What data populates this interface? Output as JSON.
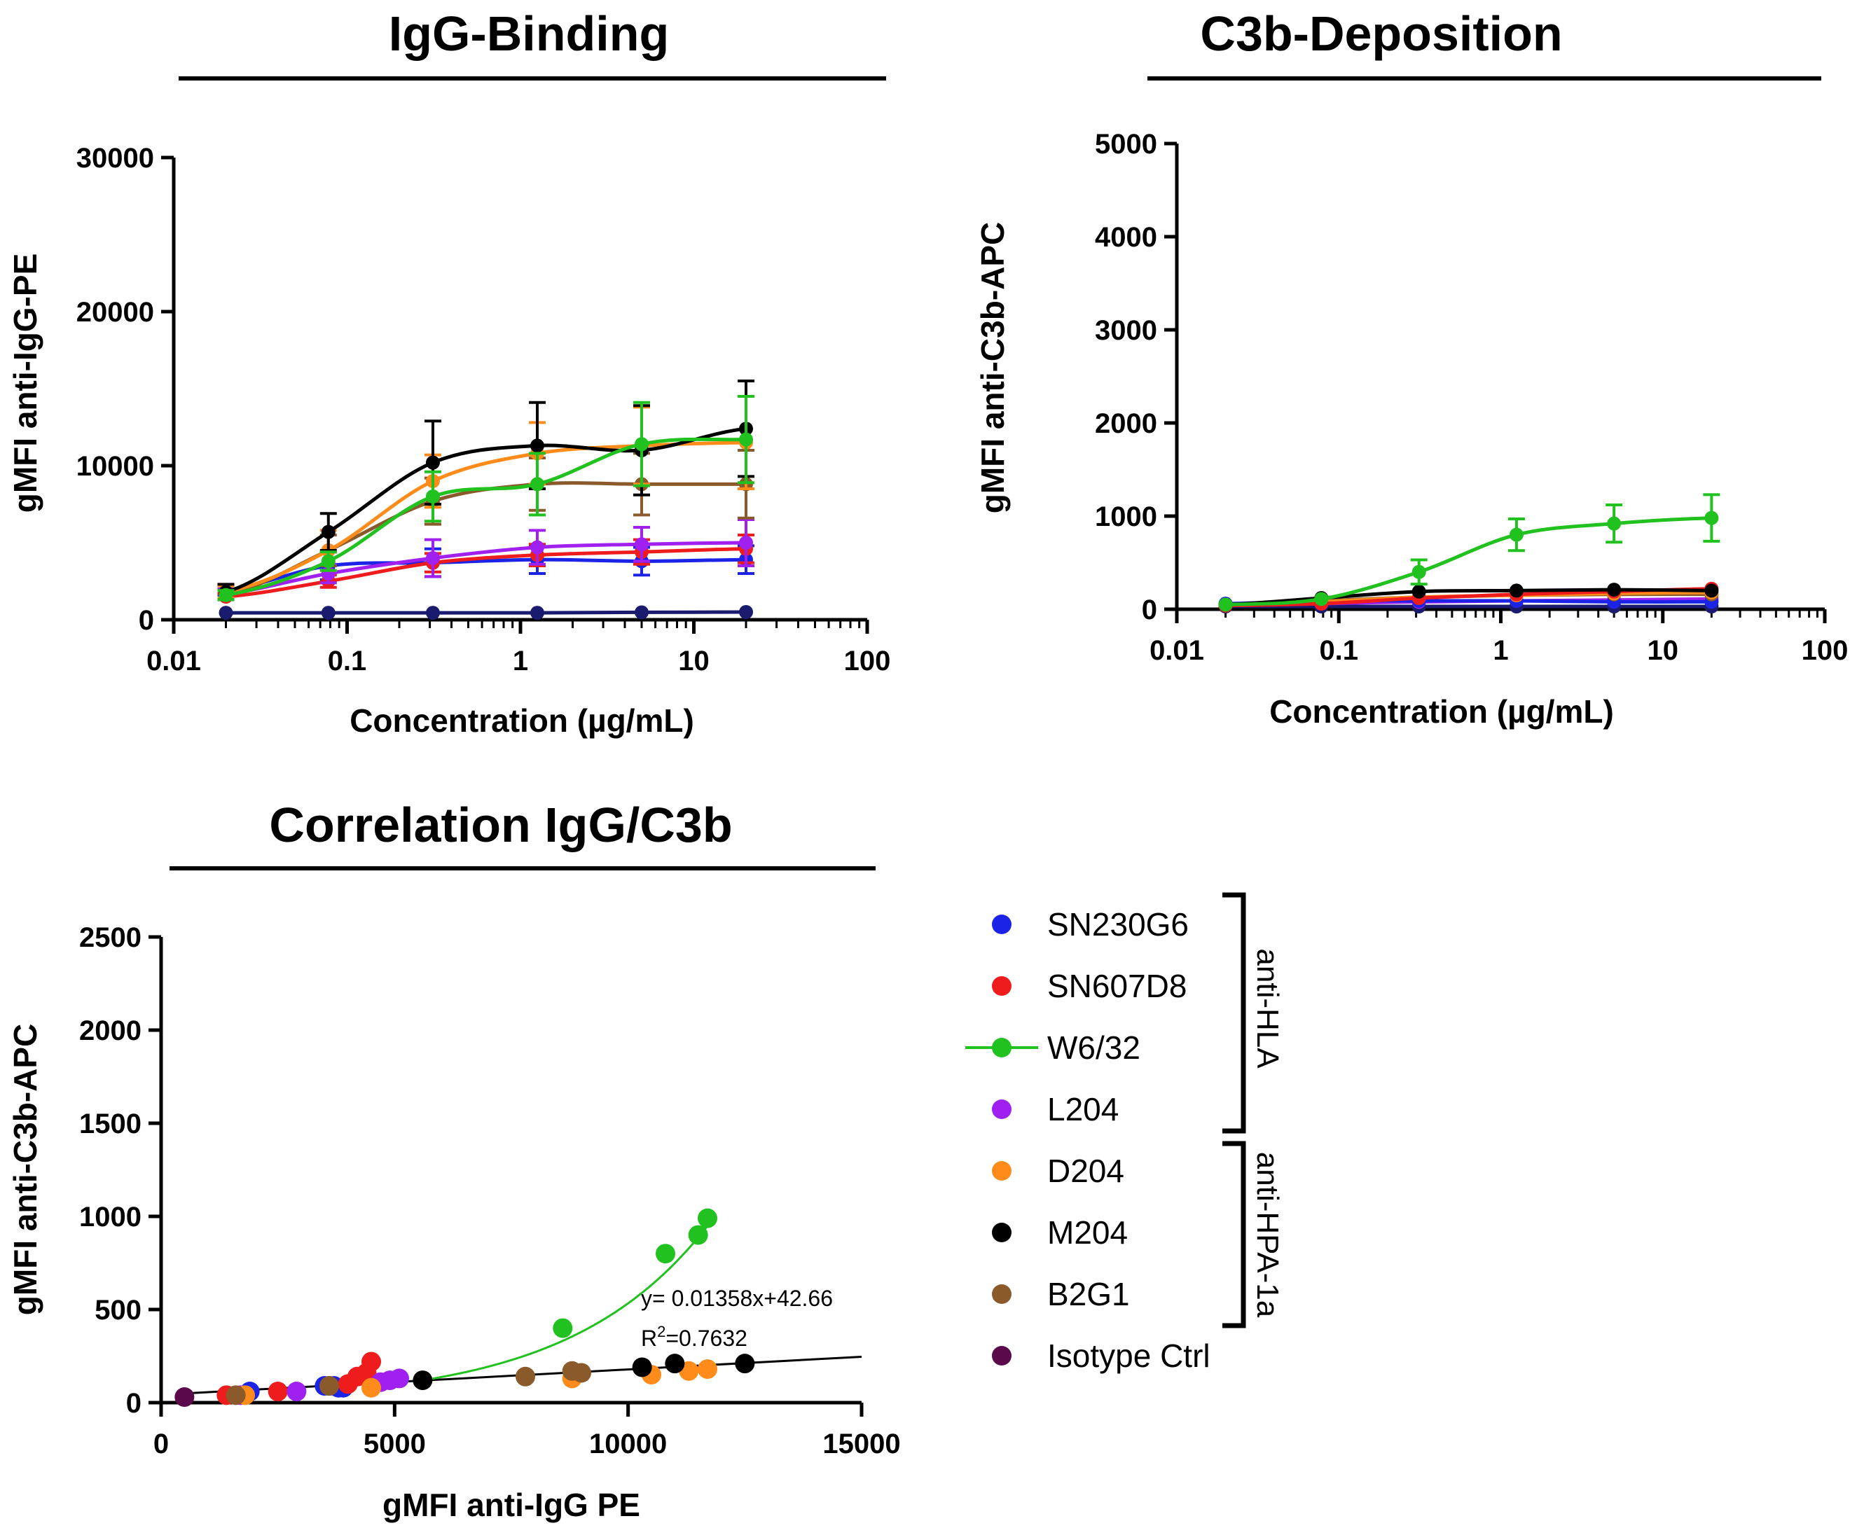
{
  "chart_data": [
    {
      "id": "igg",
      "type": "line",
      "title": "IgG-Binding",
      "xlabel": "Concentration (µg/mL)",
      "ylabel": "gMFI anti-IgG-PE",
      "xscale": "log",
      "xlim": [
        0.01,
        100
      ],
      "ylim": [
        0,
        30000
      ],
      "xticks": [
        0.01,
        0.1,
        1,
        10,
        100
      ],
      "xtick_labels": [
        "0.01",
        "0.1",
        "1",
        "10",
        "100"
      ],
      "yticks": [
        0,
        10000,
        20000,
        30000
      ],
      "ytick_labels": [
        "0",
        "10000",
        "20000",
        "30000"
      ],
      "x": [
        0.02,
        0.078,
        0.3125,
        1.25,
        5,
        20
      ],
      "series": [
        {
          "name": "Isotype Ctrl",
          "color": "#1a1a6e",
          "values": [
            450,
            450,
            450,
            450,
            480,
            500
          ],
          "err": [
            0,
            0,
            0,
            0,
            0,
            0
          ]
        },
        {
          "name": "SN230G6",
          "color": "#1b24e6",
          "values": [
            1900,
            3500,
            3700,
            3900,
            3800,
            3900
          ],
          "err": [
            300,
            900,
            900,
            900,
            900,
            900
          ]
        },
        {
          "name": "SN607D8",
          "color": "#ee1c1c",
          "values": [
            1500,
            2500,
            3700,
            4200,
            4400,
            4600
          ],
          "err": [
            200,
            400,
            600,
            700,
            800,
            900
          ]
        },
        {
          "name": "L204",
          "color": "#a020f0",
          "values": [
            1700,
            3000,
            4000,
            4700,
            4900,
            5000
          ],
          "err": [
            300,
            600,
            1200,
            1100,
            1100,
            1500
          ]
        },
        {
          "name": "B2G1",
          "color": "#8b5a2b",
          "values": [
            1600,
            4500,
            7700,
            8800,
            8800,
            8800
          ],
          "err": [
            300,
            1000,
            1500,
            1700,
            2000,
            2200
          ]
        },
        {
          "name": "D204",
          "color": "#ff8c1a",
          "values": [
            1800,
            4500,
            9000,
            10800,
            11300,
            11500
          ],
          "err": [
            400,
            1300,
            1700,
            2000,
            2500,
            3000
          ]
        },
        {
          "name": "M204",
          "color": "#000000",
          "values": [
            1800,
            5700,
            10200,
            11300,
            11000,
            12400
          ],
          "err": [
            500,
            1200,
            2700,
            2800,
            2900,
            3100
          ]
        },
        {
          "name": "W6/32",
          "color": "#21c21f",
          "values": [
            1600,
            3800,
            8000,
            8800,
            11400,
            11700
          ],
          "err": [
            300,
            600,
            1600,
            2000,
            2700,
            2800
          ]
        }
      ]
    },
    {
      "id": "c3b",
      "type": "line",
      "title": "C3b-Deposition",
      "xlabel": "Concentration (µg/mL)",
      "ylabel": "gMFI anti-C3b-APC",
      "xscale": "log",
      "xlim": [
        0.01,
        100
      ],
      "ylim": [
        0,
        5000
      ],
      "xticks": [
        0.01,
        0.1,
        1,
        10,
        100
      ],
      "xtick_labels": [
        "0.01",
        "0.1",
        "1",
        "10",
        "100"
      ],
      "yticks": [
        0,
        1000,
        2000,
        3000,
        4000,
        5000
      ],
      "ytick_labels": [
        "0",
        "1000",
        "2000",
        "3000",
        "4000",
        "5000"
      ],
      "x": [
        0.02,
        0.078,
        0.3125,
        1.25,
        5,
        20
      ],
      "series": [
        {
          "name": "Isotype Ctrl",
          "color": "#1a1a6e",
          "values": [
            30,
            30,
            30,
            30,
            30,
            30
          ],
          "err": [
            0,
            0,
            0,
            0,
            0,
            0
          ]
        },
        {
          "name": "L204",
          "color": "#a020f0",
          "values": [
            40,
            60,
            80,
            90,
            100,
            110
          ],
          "err": [
            0,
            0,
            0,
            0,
            0,
            0
          ]
        },
        {
          "name": "SN230G6",
          "color": "#1b24e6",
          "values": [
            60,
            90,
            90,
            90,
            80,
            80
          ],
          "err": [
            0,
            0,
            0,
            0,
            0,
            0
          ]
        },
        {
          "name": "B2G1",
          "color": "#8b5a2b",
          "values": [
            40,
            90,
            130,
            150,
            160,
            160
          ],
          "err": [
            0,
            0,
            0,
            0,
            0,
            0
          ]
        },
        {
          "name": "D204",
          "color": "#ff8c1a",
          "values": [
            40,
            80,
            130,
            150,
            170,
            180
          ],
          "err": [
            0,
            0,
            0,
            0,
            0,
            0
          ]
        },
        {
          "name": "SN607D8",
          "color": "#ee1c1c",
          "values": [
            40,
            60,
            120,
            160,
            190,
            220
          ],
          "err": [
            0,
            0,
            0,
            0,
            0,
            0
          ]
        },
        {
          "name": "M204",
          "color": "#000000",
          "values": [
            50,
            120,
            190,
            200,
            210,
            200
          ],
          "err": [
            0,
            0,
            0,
            0,
            0,
            0
          ]
        },
        {
          "name": "W6/32",
          "color": "#21c21f",
          "values": [
            50,
            110,
            400,
            800,
            920,
            980
          ],
          "err": [
            0,
            0,
            130,
            170,
            200,
            250
          ]
        }
      ]
    },
    {
      "id": "corr",
      "type": "scatter",
      "title": "Correlation IgG/C3b",
      "xlabel": "gMFI anti-IgG PE",
      "ylabel": "gMFI anti-C3b-APC",
      "xlim": [
        0,
        15000
      ],
      "ylim": [
        0,
        2500
      ],
      "xticks": [
        0,
        5000,
        10000,
        15000
      ],
      "xtick_labels": [
        "0",
        "5000",
        "10000",
        "15000"
      ],
      "yticks": [
        0,
        500,
        1000,
        1500,
        2000,
        2500
      ],
      "ytick_labels": [
        "0",
        "500",
        "1000",
        "1500",
        "2000",
        "2500"
      ],
      "series": [
        {
          "name": "SN230G6",
          "color": "#1b24e6",
          "points": [
            [
              1900,
              60
            ],
            [
              3500,
              90
            ],
            [
              3600,
              90
            ],
            [
              3700,
              90
            ],
            [
              3800,
              80
            ],
            [
              3900,
              80
            ]
          ]
        },
        {
          "name": "SN607D8",
          "color": "#ee1c1c",
          "points": [
            [
              1400,
              40
            ],
            [
              2500,
              60
            ],
            [
              4000,
              100
            ],
            [
              4200,
              140
            ],
            [
              4400,
              160
            ],
            [
              4500,
              220
            ]
          ]
        },
        {
          "name": "W6/32",
          "color": "#21c21f",
          "points": [
            [
              8600,
              400
            ],
            [
              10800,
              800
            ],
            [
              11500,
              900
            ],
            [
              11700,
              990
            ]
          ]
        },
        {
          "name": "L204",
          "color": "#a020f0",
          "points": [
            [
              1700,
              40
            ],
            [
              2900,
              60
            ],
            [
              4700,
              110
            ],
            [
              4900,
              120
            ],
            [
              5100,
              130
            ]
          ]
        },
        {
          "name": "D204",
          "color": "#ff8c1a",
          "points": [
            [
              1800,
              40
            ],
            [
              4500,
              80
            ],
            [
              8800,
              130
            ],
            [
              10500,
              150
            ],
            [
              11300,
              170
            ],
            [
              11700,
              180
            ]
          ]
        },
        {
          "name": "M204",
          "color": "#000000",
          "points": [
            [
              5600,
              120
            ],
            [
              10300,
              190
            ],
            [
              11000,
              210
            ],
            [
              12500,
              210
            ]
          ]
        },
        {
          "name": "B2G1",
          "color": "#8b5a2b",
          "points": [
            [
              1600,
              40
            ],
            [
              3600,
              90
            ],
            [
              7800,
              140
            ],
            [
              8800,
              170
            ],
            [
              9000,
              160
            ]
          ]
        },
        {
          "name": "Isotype Ctrl",
          "color": "#5a0a4a",
          "points": [
            [
              500,
              30
            ]
          ]
        }
      ],
      "fit_line": {
        "slope": 0.01358,
        "intercept": 42.66,
        "color": "#000000"
      },
      "equation_text": "y= 0.01358x+42.66",
      "r2_prefix": "R",
      "r2_sup": "2",
      "r2_value": "=0.7632"
    }
  ],
  "legend": {
    "items": [
      {
        "name": "SN230G6",
        "color": "#1b24e6",
        "line": false
      },
      {
        "name": "SN607D8",
        "color": "#ee1c1c",
        "line": false
      },
      {
        "name": "W6/32",
        "color": "#21c21f",
        "line": true
      },
      {
        "name": "L204",
        "color": "#a020f0",
        "line": false
      },
      {
        "name": "D204",
        "color": "#ff8c1a",
        "line": false
      },
      {
        "name": "M204",
        "color": "#000000",
        "line": false
      },
      {
        "name": "B2G1",
        "color": "#8b5a2b",
        "line": false
      },
      {
        "name": "Isotype Ctrl",
        "color": "#5a0a4a",
        "line": false
      }
    ],
    "groups": [
      {
        "label": "anti-HLA"
      },
      {
        "label": "anti-HPA-1a"
      }
    ]
  }
}
